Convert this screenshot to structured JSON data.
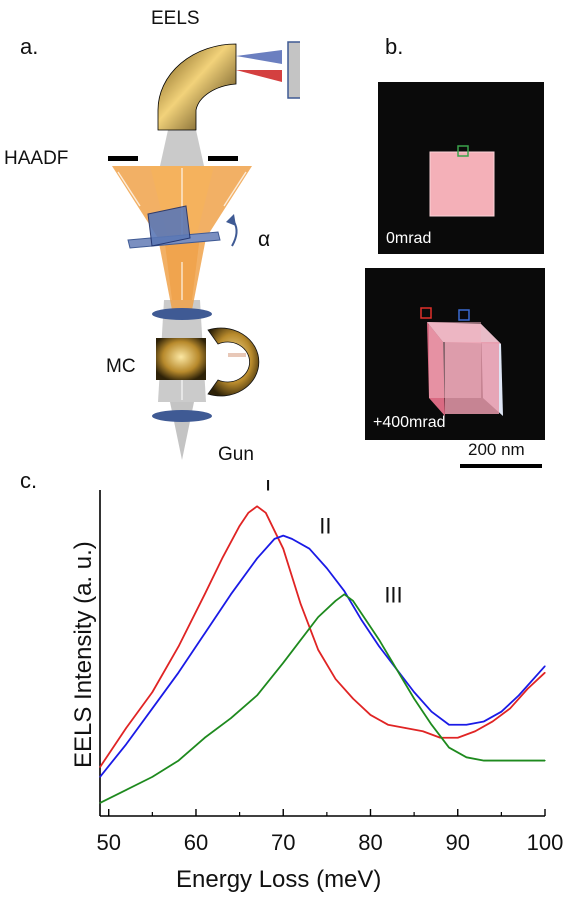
{
  "figure": {
    "panel_a": {
      "label": "a.",
      "eels_label": "EELS",
      "haadf_label": "HAADF",
      "alpha_label": "α",
      "mc_label": "MC",
      "gun_label": "Gun"
    },
    "panel_b": {
      "label": "b.",
      "top_image_label": "0mrad",
      "bottom_image_label": "+400mrad",
      "scale_bar_label": "200 nm"
    },
    "panel_c": {
      "label": "c."
    }
  },
  "colors": {
    "red": "#e02424",
    "blue": "#1a1ae6",
    "green": "#1e8a1e",
    "beam": "#f0a24a",
    "lens": "#3f5a94",
    "sample": "#5b78b6"
  },
  "chart_data": {
    "type": "line",
    "xlabel": "Energy Loss (meV)",
    "ylabel": "EELS Intensity (a. u.)",
    "xlim": [
      49,
      100
    ],
    "ylim": [
      0,
      1
    ],
    "xticks": [
      50,
      60,
      70,
      80,
      90,
      100
    ],
    "y_tick_labels": false,
    "grid": false,
    "series": [
      {
        "name": "I",
        "color": "#e02424",
        "x": [
          49,
          52,
          55,
          58,
          61,
          63,
          65,
          66,
          67,
          68,
          70,
          72,
          74,
          76,
          78,
          80,
          82,
          84,
          86,
          88,
          90,
          92,
          94,
          96,
          98,
          100
        ],
        "y": [
          0.15,
          0.27,
          0.38,
          0.52,
          0.68,
          0.79,
          0.89,
          0.93,
          0.95,
          0.93,
          0.82,
          0.65,
          0.51,
          0.42,
          0.36,
          0.31,
          0.28,
          0.27,
          0.26,
          0.24,
          0.24,
          0.26,
          0.29,
          0.33,
          0.39,
          0.44
        ]
      },
      {
        "name": "II",
        "color": "#1a1ae6",
        "x": [
          49,
          52,
          55,
          58,
          61,
          64,
          67,
          69,
          70,
          71,
          73,
          75,
          77,
          79,
          81,
          83,
          85,
          87,
          89,
          91,
          93,
          95,
          97,
          100
        ],
        "y": [
          0.12,
          0.22,
          0.33,
          0.44,
          0.56,
          0.68,
          0.79,
          0.85,
          0.86,
          0.85,
          0.82,
          0.76,
          0.69,
          0.6,
          0.52,
          0.45,
          0.38,
          0.32,
          0.28,
          0.28,
          0.29,
          0.32,
          0.37,
          0.46
        ]
      },
      {
        "name": "III",
        "color": "#1e8a1e",
        "x": [
          49,
          52,
          55,
          58,
          61,
          64,
          67,
          70,
          72,
          74,
          76,
          77,
          78,
          79,
          81,
          83,
          85,
          87,
          89,
          91,
          93,
          95,
          97,
          100
        ],
        "y": [
          0.04,
          0.08,
          0.12,
          0.17,
          0.24,
          0.3,
          0.37,
          0.47,
          0.54,
          0.61,
          0.66,
          0.68,
          0.66,
          0.62,
          0.54,
          0.45,
          0.36,
          0.28,
          0.21,
          0.18,
          0.17,
          0.17,
          0.17,
          0.17
        ]
      }
    ]
  }
}
